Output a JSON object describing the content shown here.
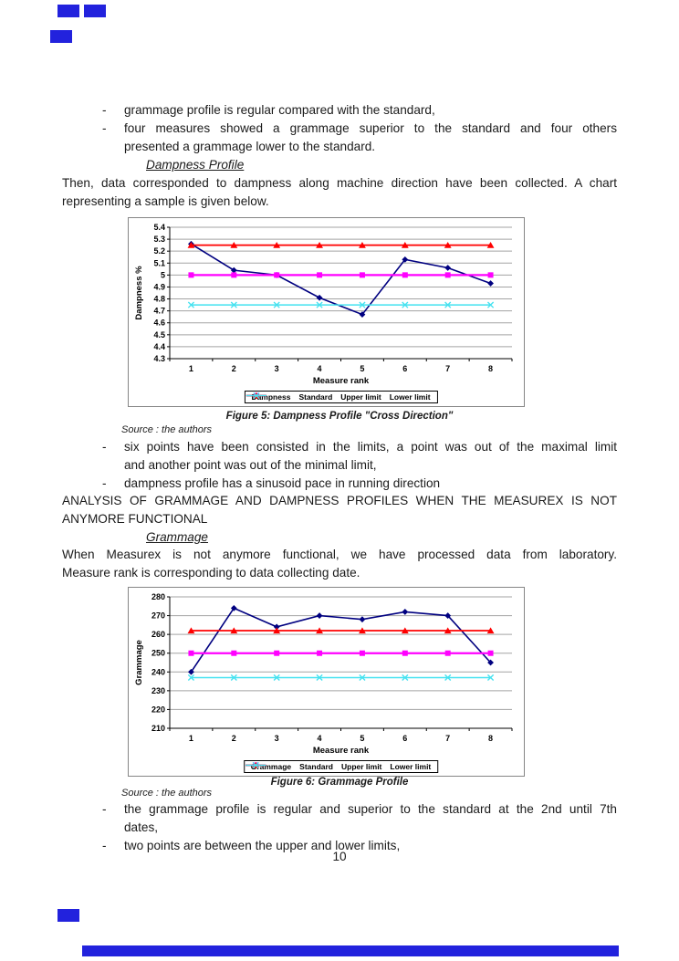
{
  "page_number": "10",
  "glyphs": {
    "dash": "-"
  },
  "artifacts": {
    "color": "#2222dd"
  },
  "texts": {
    "bullet1": "grammage profile is regular compared with the standard,",
    "bullet2a": "four measures showed a grammage superior to the standard and four others",
    "bullet2b": "presented a grammage lower to the standard.",
    "heading_dampness": "Dampness Profile",
    "para1a": "Then, data corresponded to dampness along machine direction have been collected. A chart",
    "para1b": "representing a sample is given below.",
    "source1": "Source : the authors",
    "bullet3a": "six points have been consisted in the limits, a point was out of the maximal limit",
    "bullet3b": "and another point was out of the minimal limit,",
    "bullet4": "dampness profile has a sinusoid pace in running direction",
    "heading_analysis_a": "ANALYSIS OF GRAMMAGE AND DAMPNESS PROFILES WHEN THE MEASUREX IS NOT",
    "heading_analysis_b": "ANYMORE FUNCTIONAL",
    "heading_grammage": "Grammage",
    "para2a": "When Measurex is not anymore functional, we have processed data from laboratory.",
    "para2b": "Measure rank is corresponding to data collecting date.",
    "source2": "Source : the authors",
    "bullet5a": "the grammage profile is regular and superior to the standard at the 2nd until 7th",
    "bullet5b": "dates,",
    "bullet6": "two points are between the upper and lower limits,"
  },
  "chart_data": [
    {
      "type": "line",
      "caption": "Figure 5: Dampness Profile \"Cross Direction\"",
      "categories": [
        "1",
        "2",
        "3",
        "4",
        "5",
        "6",
        "7",
        "8"
      ],
      "series": [
        {
          "name": "Dampness",
          "color": "#000080",
          "marker": "diamond",
          "line_width": 1.6,
          "values": [
            5.26,
            5.04,
            5.0,
            4.81,
            4.67,
            5.13,
            5.06,
            4.93
          ]
        },
        {
          "name": "Standard",
          "color": "#ff00ff",
          "marker": "square",
          "line_width": 2.2,
          "values": [
            5.0,
            5.0,
            5.0,
            5.0,
            5.0,
            5.0,
            5.0,
            5.0
          ]
        },
        {
          "name": "Upper limit",
          "color": "#ff0000",
          "marker": "triangle",
          "line_width": 1.8,
          "values": [
            5.25,
            5.25,
            5.25,
            5.25,
            5.25,
            5.25,
            5.25,
            5.25
          ]
        },
        {
          "name": "Lower limit",
          "color": "#45e2f0",
          "marker": "x",
          "line_width": 1.5,
          "values": [
            4.75,
            4.75,
            4.75,
            4.75,
            4.75,
            4.75,
            4.75,
            4.75
          ]
        }
      ],
      "xlabel": "Measure rank",
      "ylabel": "Dampness %",
      "ylim": [
        4.3,
        5.4
      ],
      "ytick_step": 0.1,
      "grid": true,
      "legend_position": "bottom"
    },
    {
      "type": "line",
      "caption": "Figure 6: Grammage Profile",
      "categories": [
        "1",
        "2",
        "3",
        "4",
        "5",
        "6",
        "7",
        "8"
      ],
      "series": [
        {
          "name": "Grammage",
          "color": "#000080",
          "marker": "diamond",
          "line_width": 1.6,
          "values": [
            240,
            274,
            264,
            270,
            268,
            272,
            270,
            245
          ]
        },
        {
          "name": "Standard",
          "color": "#ff00ff",
          "marker": "square",
          "line_width": 2.2,
          "values": [
            250,
            250,
            250,
            250,
            250,
            250,
            250,
            250
          ]
        },
        {
          "name": "Upper limit",
          "color": "#ff0000",
          "marker": "triangle",
          "line_width": 1.8,
          "values": [
            262,
            262,
            262,
            262,
            262,
            262,
            262,
            262
          ]
        },
        {
          "name": "Lower limit",
          "color": "#45e2f0",
          "marker": "x",
          "line_width": 1.5,
          "values": [
            237,
            237,
            237,
            237,
            237,
            237,
            237,
            237
          ]
        }
      ],
      "xlabel": "Measure rank",
      "ylabel": "Grammage",
      "ylim": [
        210,
        280
      ],
      "ytick_step": 10,
      "grid": true,
      "legend_position": "bottom"
    }
  ]
}
